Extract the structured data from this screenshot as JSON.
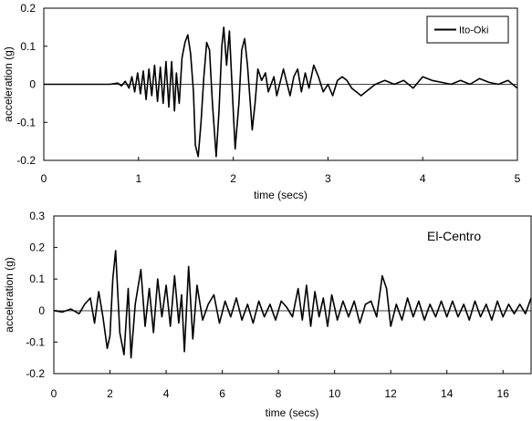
{
  "chart_data": [
    {
      "type": "line",
      "title": "",
      "xlabel": "time (secs)",
      "ylabel": "acceleration (g)",
      "xlim": [
        0,
        5
      ],
      "ylim": [
        -0.2,
        0.2
      ],
      "xticks": [
        0,
        1,
        2,
        3,
        4,
        5
      ],
      "yticks": [
        -0.2,
        -0.1,
        0,
        0.1,
        0.2
      ],
      "xtick_labels": [
        "0",
        "1",
        "2",
        "3",
        "4",
        "5"
      ],
      "ytick_labels": [
        "-0.2",
        "-0.1",
        "0",
        "0.1",
        "0.2"
      ],
      "grid": false,
      "legend": {
        "position": "top-right",
        "entries": [
          "Ito-Oki"
        ]
      },
      "series": [
        {
          "name": "Ito-Oki",
          "color": "#000000",
          "points": [
            [
              0,
              0
            ],
            [
              0.7,
              0
            ],
            [
              0.78,
              0.003
            ],
            [
              0.82,
              -0.004
            ],
            [
              0.86,
              0.008
            ],
            [
              0.9,
              -0.01
            ],
            [
              0.93,
              0.02
            ],
            [
              0.96,
              -0.02
            ],
            [
              0.99,
              0.03
            ],
            [
              1.02,
              -0.025
            ],
            [
              1.05,
              0.035
            ],
            [
              1.08,
              -0.04
            ],
            [
              1.11,
              0.04
            ],
            [
              1.14,
              -0.03
            ],
            [
              1.17,
              0.05
            ],
            [
              1.2,
              -0.045
            ],
            [
              1.23,
              0.045
            ],
            [
              1.26,
              -0.05
            ],
            [
              1.29,
              0.06
            ],
            [
              1.32,
              -0.06
            ],
            [
              1.35,
              0.06
            ],
            [
              1.38,
              -0.07
            ],
            [
              1.4,
              0.03
            ],
            [
              1.43,
              -0.05
            ],
            [
              1.46,
              0.07
            ],
            [
              1.49,
              0.11
            ],
            [
              1.52,
              0.13
            ],
            [
              1.55,
              0.08
            ],
            [
              1.58,
              -0.02
            ],
            [
              1.6,
              -0.16
            ],
            [
              1.63,
              -0.19
            ],
            [
              1.66,
              -0.1
            ],
            [
              1.69,
              0.02
            ],
            [
              1.72,
              0.11
            ],
            [
              1.75,
              0.09
            ],
            [
              1.78,
              -0.05
            ],
            [
              1.82,
              -0.19
            ],
            [
              1.85,
              -0.07
            ],
            [
              1.88,
              0.1
            ],
            [
              1.9,
              0.15
            ],
            [
              1.93,
              0.05
            ],
            [
              1.96,
              0.14
            ],
            [
              1.99,
              -0.02
            ],
            [
              2.02,
              -0.17
            ],
            [
              2.06,
              -0.05
            ],
            [
              2.09,
              0.09
            ],
            [
              2.12,
              0.12
            ],
            [
              2.15,
              0.05
            ],
            [
              2.18,
              -0.05
            ],
            [
              2.2,
              -0.12
            ],
            [
              2.23,
              -0.05
            ],
            [
              2.26,
              0.04
            ],
            [
              2.3,
              0.01
            ],
            [
              2.34,
              0.03
            ],
            [
              2.37,
              -0.02
            ],
            [
              2.4,
              0
            ],
            [
              2.43,
              0.02
            ],
            [
              2.46,
              -0.03
            ],
            [
              2.5,
              0.01
            ],
            [
              2.53,
              0.04
            ],
            [
              2.56,
              0.01
            ],
            [
              2.6,
              -0.03
            ],
            [
              2.64,
              0.02
            ],
            [
              2.68,
              0.04
            ],
            [
              2.72,
              -0.02
            ],
            [
              2.76,
              0.03
            ],
            [
              2.8,
              -0.01
            ],
            [
              2.85,
              0.05
            ],
            [
              2.9,
              0.02
            ],
            [
              2.95,
              -0.02
            ],
            [
              3.0,
              0
            ],
            [
              3.05,
              -0.03
            ],
            [
              3.1,
              0.01
            ],
            [
              3.15,
              0.02
            ],
            [
              3.2,
              0.01
            ],
            [
              3.25,
              -0.01
            ],
            [
              3.3,
              -0.02
            ],
            [
              3.35,
              -0.03
            ],
            [
              3.4,
              -0.02
            ],
            [
              3.5,
              0
            ],
            [
              3.6,
              0.01
            ],
            [
              3.7,
              0
            ],
            [
              3.8,
              0.01
            ],
            [
              3.9,
              -0.01
            ],
            [
              4.0,
              0.02
            ],
            [
              4.1,
              0.01
            ],
            [
              4.2,
              0.005
            ],
            [
              4.3,
              0
            ],
            [
              4.4,
              0.01
            ],
            [
              4.5,
              0
            ],
            [
              4.6,
              0.015
            ],
            [
              4.7,
              0.005
            ],
            [
              4.8,
              0
            ],
            [
              4.9,
              0.01
            ],
            [
              5.0,
              -0.01
            ]
          ]
        }
      ]
    },
    {
      "type": "line",
      "title": "",
      "xlabel": "time (secs)",
      "ylabel": "acceleration (g)",
      "xlim": [
        0,
        17
      ],
      "ylim": [
        -0.2,
        0.3
      ],
      "xticks": [
        0,
        2,
        4,
        6,
        8,
        10,
        12,
        14,
        16
      ],
      "yticks": [
        -0.2,
        -0.1,
        0,
        0.1,
        0.2,
        0.3
      ],
      "xtick_labels": [
        "0",
        "2",
        "4",
        "6",
        "8",
        "10",
        "12",
        "14",
        "16"
      ],
      "ytick_labels": [
        "-0.2",
        "-0.1",
        "0",
        "0.1",
        "0.2",
        "0.3"
      ],
      "grid": false,
      "annotation": "El-Centro",
      "series": [
        {
          "color": "#000000",
          "points": [
            [
              0,
              0
            ],
            [
              0.3,
              -0.005
            ],
            [
              0.6,
              0.005
            ],
            [
              0.9,
              -0.01
            ],
            [
              1.1,
              0.02
            ],
            [
              1.3,
              0.04
            ],
            [
              1.45,
              -0.04
            ],
            [
              1.6,
              0.06
            ],
            [
              1.75,
              -0.02
            ],
            [
              1.9,
              -0.12
            ],
            [
              2.0,
              -0.08
            ],
            [
              2.1,
              0.1
            ],
            [
              2.2,
              0.19
            ],
            [
              2.35,
              -0.07
            ],
            [
              2.5,
              -0.14
            ],
            [
              2.65,
              0.07
            ],
            [
              2.75,
              -0.15
            ],
            [
              2.9,
              0.02
            ],
            [
              3.1,
              0.13
            ],
            [
              3.25,
              -0.05
            ],
            [
              3.4,
              0.07
            ],
            [
              3.55,
              -0.07
            ],
            [
              3.7,
              0.1
            ],
            [
              3.85,
              -0.02
            ],
            [
              4.0,
              0.08
            ],
            [
              4.15,
              -0.05
            ],
            [
              4.3,
              0.11
            ],
            [
              4.45,
              -0.04
            ],
            [
              4.55,
              0.05
            ],
            [
              4.65,
              -0.13
            ],
            [
              4.8,
              0.14
            ],
            [
              4.95,
              -0.09
            ],
            [
              5.1,
              0.08
            ],
            [
              5.3,
              -0.03
            ],
            [
              5.5,
              0.02
            ],
            [
              5.7,
              0.05
            ],
            [
              5.9,
              -0.04
            ],
            [
              6.1,
              0.03
            ],
            [
              6.3,
              -0.02
            ],
            [
              6.5,
              0.04
            ],
            [
              6.7,
              -0.03
            ],
            [
              6.9,
              0.02
            ],
            [
              7.1,
              -0.04
            ],
            [
              7.3,
              0.03
            ],
            [
              7.5,
              -0.02
            ],
            [
              7.7,
              0.02
            ],
            [
              7.9,
              -0.03
            ],
            [
              8.1,
              0.03
            ],
            [
              8.3,
              0.01
            ],
            [
              8.5,
              -0.02
            ],
            [
              8.7,
              0.07
            ],
            [
              8.85,
              -0.03
            ],
            [
              9.0,
              0.08
            ],
            [
              9.15,
              -0.05
            ],
            [
              9.3,
              0.06
            ],
            [
              9.45,
              -0.02
            ],
            [
              9.6,
              0.04
            ],
            [
              9.75,
              -0.05
            ],
            [
              9.9,
              0.05
            ],
            [
              10.1,
              -0.03
            ],
            [
              10.3,
              0.03
            ],
            [
              10.5,
              -0.02
            ],
            [
              10.7,
              0.03
            ],
            [
              10.9,
              -0.04
            ],
            [
              11.1,
              0.02
            ],
            [
              11.3,
              0.03
            ],
            [
              11.5,
              -0.02
            ],
            [
              11.7,
              0.11
            ],
            [
              11.85,
              0.07
            ],
            [
              12.0,
              -0.05
            ],
            [
              12.2,
              0.02
            ],
            [
              12.4,
              -0.03
            ],
            [
              12.6,
              0.04
            ],
            [
              12.8,
              -0.02
            ],
            [
              13.0,
              0.03
            ],
            [
              13.2,
              -0.03
            ],
            [
              13.4,
              0.02
            ],
            [
              13.6,
              -0.02
            ],
            [
              13.8,
              0.03
            ],
            [
              14.0,
              -0.02
            ],
            [
              14.2,
              0.03
            ],
            [
              14.4,
              -0.02
            ],
            [
              14.6,
              0.02
            ],
            [
              14.8,
              -0.03
            ],
            [
              15.0,
              0.03
            ],
            [
              15.2,
              -0.02
            ],
            [
              15.4,
              0.02
            ],
            [
              15.6,
              -0.03
            ],
            [
              15.8,
              0.03
            ],
            [
              16.0,
              -0.02
            ],
            [
              16.2,
              0.02
            ],
            [
              16.4,
              -0.01
            ],
            [
              16.6,
              0.02
            ],
            [
              16.8,
              -0.01
            ],
            [
              17.0,
              0.04
            ]
          ]
        }
      ]
    }
  ]
}
